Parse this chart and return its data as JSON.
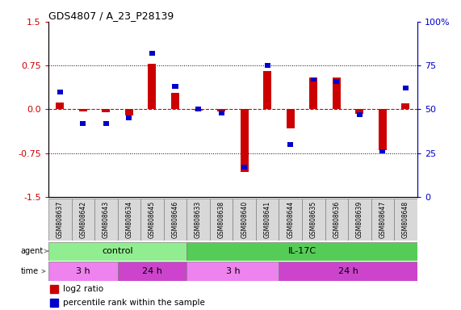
{
  "title": "GDS4807 / A_23_P28139",
  "samples": [
    "GSM808637",
    "GSM808642",
    "GSM808643",
    "GSM808634",
    "GSM808645",
    "GSM808646",
    "GSM808633",
    "GSM808638",
    "GSM808640",
    "GSM808641",
    "GSM808644",
    "GSM808635",
    "GSM808636",
    "GSM808639",
    "GSM808647",
    "GSM808648"
  ],
  "log2_ratio": [
    0.12,
    -0.04,
    -0.05,
    -0.1,
    0.78,
    0.28,
    -0.02,
    -0.04,
    -1.08,
    0.65,
    -0.32,
    0.55,
    0.55,
    -0.08,
    -0.7,
    0.1
  ],
  "percentile": [
    60,
    42,
    42,
    45,
    82,
    63,
    50,
    48,
    17,
    75,
    30,
    67,
    66,
    47,
    26,
    62
  ],
  "agent_groups": [
    {
      "label": "control",
      "start": 0,
      "end": 6,
      "color": "#90EE90"
    },
    {
      "label": "IL-17C",
      "start": 6,
      "end": 16,
      "color": "#55CC55"
    }
  ],
  "time_groups": [
    {
      "label": "3 h",
      "start": 0,
      "end": 3,
      "color": "#EE82EE"
    },
    {
      "label": "24 h",
      "start": 3,
      "end": 6,
      "color": "#CC44CC"
    },
    {
      "label": "3 h",
      "start": 6,
      "end": 10,
      "color": "#EE82EE"
    },
    {
      "label": "24 h",
      "start": 10,
      "end": 16,
      "color": "#CC44CC"
    }
  ],
  "ylim": [
    -1.5,
    1.5
  ],
  "y2lim": [
    0,
    100
  ],
  "yticks": [
    -1.5,
    -0.75,
    0.0,
    0.75,
    1.5
  ],
  "y2ticks": [
    0,
    25,
    50,
    75,
    100
  ],
  "bar_color_red": "#CC0000",
  "bar_color_blue": "#0000CC",
  "zero_line_color": "#CC0000",
  "grid_color": "#000000",
  "bg_color": "#FFFFFF",
  "tick_label_color_left": "#CC0000",
  "tick_label_color_right": "#0000CC",
  "red_bar_width": 0.35,
  "blue_bar_width": 0.25,
  "blue_bar_height": 0.08
}
